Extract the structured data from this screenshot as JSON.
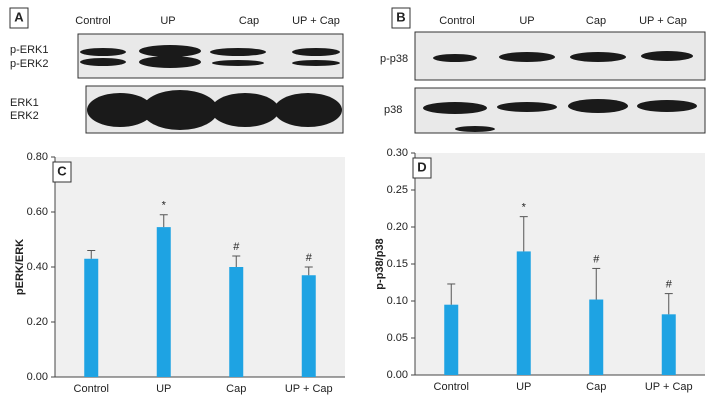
{
  "panels": [
    {
      "letter": "A",
      "lanes": [
        "Control",
        "UP",
        "Cap",
        "UP + Cap"
      ],
      "rows": [
        "p-ERK1",
        "p-ERK2",
        "ERK1",
        "ERK2"
      ]
    },
    {
      "letter": "B",
      "lanes": [
        "Control",
        "UP",
        "Cap",
        "UP + Cap"
      ],
      "rows": [
        "p-p38",
        "p38"
      ]
    }
  ],
  "chart_data": [
    {
      "type": "bar",
      "panel": "C",
      "ylabel": "pERK/ERK",
      "categories": [
        "Control",
        "UP",
        "Cap",
        "UP + Cap"
      ],
      "values": [
        0.43,
        0.545,
        0.4,
        0.37
      ],
      "errors": [
        0.03,
        0.045,
        0.04,
        0.03
      ],
      "markers": [
        null,
        "*",
        "#",
        "#"
      ],
      "color": "#1ea3e3",
      "ylim": [
        0,
        0.8
      ],
      "yticks": [
        {
          "value": 0,
          "label": "0.00"
        },
        {
          "value": 0.2,
          "label": "0.20"
        },
        {
          "value": 0.4,
          "label": "0.40"
        },
        {
          "value": 0.6,
          "label": "0.60"
        },
        {
          "value": 0.8,
          "label": "0.80"
        }
      ]
    },
    {
      "type": "bar",
      "panel": "D",
      "ylabel": "p-p38/p38",
      "categories": [
        "Control",
        "UP",
        "Cap",
        "UP + Cap"
      ],
      "values": [
        0.095,
        0.167,
        0.102,
        0.082
      ],
      "errors": [
        0.028,
        0.047,
        0.042,
        0.028
      ],
      "markers": [
        null,
        "*",
        "#",
        "#"
      ],
      "color": "#1ea3e3",
      "ylim": [
        0,
        0.3
      ],
      "yticks": [
        {
          "value": 0,
          "label": "0.00"
        },
        {
          "value": 0.05,
          "label": "0.05"
        },
        {
          "value": 0.1,
          "label": "0.10"
        },
        {
          "value": 0.15,
          "label": "0.15"
        },
        {
          "value": 0.2,
          "label": "0.20"
        },
        {
          "value": 0.25,
          "label": "0.25"
        },
        {
          "value": 0.3,
          "label": "0.30"
        }
      ]
    }
  ]
}
